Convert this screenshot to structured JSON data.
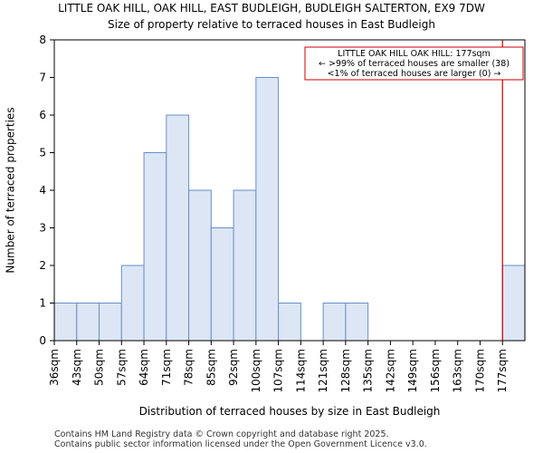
{
  "chart_data": {
    "type": "bar",
    "title": "LITTLE OAK HILL, OAK HILL, EAST BUDLEIGH, BUDLEIGH SALTERTON, EX9 7DW",
    "subtitle": "Size of property relative to terraced houses in East Budleigh",
    "xlabel": "Distribution of terraced houses by size in East Budleigh",
    "ylabel": "Number of terraced properties",
    "categories": [
      "36sqm",
      "43sqm",
      "50sqm",
      "57sqm",
      "64sqm",
      "71sqm",
      "78sqm",
      "85sqm",
      "92sqm",
      "100sqm",
      "107sqm",
      "114sqm",
      "121sqm",
      "128sqm",
      "135sqm",
      "142sqm",
      "149sqm",
      "156sqm",
      "163sqm",
      "170sqm",
      "177sqm"
    ],
    "values": [
      1,
      1,
      1,
      2,
      5,
      6,
      4,
      3,
      4,
      7,
      1,
      0,
      1,
      1,
      0,
      0,
      0,
      0,
      0,
      0,
      2
    ],
    "yticks": [
      0,
      1,
      2,
      3,
      4,
      5,
      6,
      7,
      8
    ],
    "ylim": [
      0,
      8
    ],
    "bar_color": "#dce6f5",
    "bar_edge_color": "#6a8fc8",
    "marker_color": "#cc0000",
    "marker_category_index": 20,
    "annotation": {
      "lines": [
        "LITTLE OAK HILL OAK HILL: 177sqm",
        "← >99% of terraced houses are smaller (38)",
        "<1% of terraced houses are larger (0) →"
      ]
    }
  },
  "footer": {
    "line1": "Contains HM Land Registry data © Crown copyright and database right 2025.",
    "line2": "Contains public sector information licensed under the Open Government Licence v3.0."
  }
}
